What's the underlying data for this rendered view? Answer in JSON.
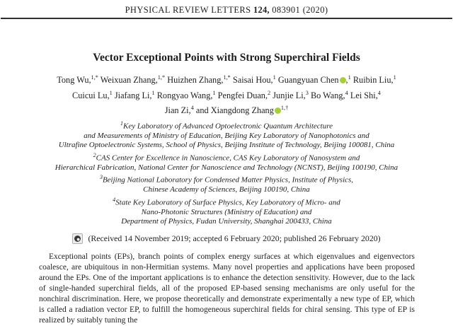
{
  "header": {
    "journal": "PHYSICAL REVIEW LETTERS",
    "volume_bold": "124,",
    "issue": "083901 (2020)"
  },
  "title": "Vector Exceptional Points with Strong Superchiral Fields",
  "authors": {
    "lines": [
      [
        {
          "name": "Tong Wu,",
          "sup": "1,*"
        },
        {
          "name": "Weixuan Zhang,",
          "sup": "1,*"
        },
        {
          "name": "Huizhen Zhang,",
          "sup": "1,*"
        },
        {
          "name": "Saisai Hou,",
          "sup": "1"
        },
        {
          "name": "Guangyuan Chen",
          "orcid": true,
          "post": ",",
          "sup": "1"
        },
        {
          "name": "Ruibin Liu,",
          "sup": "1"
        }
      ],
      [
        {
          "name": "Cuicui Lu,",
          "sup": "1"
        },
        {
          "name": "Jiafang Li,",
          "sup": "1"
        },
        {
          "name": "Rongyao Wang,",
          "sup": "1"
        },
        {
          "name": "Pengfei Duan,",
          "sup": "2"
        },
        {
          "name": "Junjie Li,",
          "sup": "3"
        },
        {
          "name": "Bo Wang,",
          "sup": "4"
        },
        {
          "name": "Lei Shi,",
          "sup": "4"
        }
      ],
      [
        {
          "name": "Jian Zi,",
          "sup": "4"
        },
        {
          "name": "and Xiangdong Zhang",
          "orcid": true,
          "sup": "1,†"
        }
      ]
    ]
  },
  "affiliations": [
    {
      "sup": "1",
      "text": "Key Laboratory of Advanced Optoelectronic Quantum Architecture"
    },
    {
      "sup": "",
      "text": "and Measurements of Ministry of Education, Beijing Key Laboratory of Nanophotonics and"
    },
    {
      "sup": "",
      "text": "Ultrafine Optoelectronic Systems, School of Physics, Beijing Institute of Technology, Beijing 100081, China"
    },
    {
      "sup": "2",
      "text": "CAS Center for Excellence in Nanoscience, CAS Key Laboratory of Nanosystem and"
    },
    {
      "sup": "",
      "text": "Hierarchical Fabrication, National Center for Nanoscience and Technology (NCNST), Beijing 100190, China"
    },
    {
      "sup": "3",
      "text": "Beijing National Laboratory for Condensed Matter Physics, Institute of Physics,"
    },
    {
      "sup": "",
      "text": "Chinese Academy of Sciences, Beijing 100190, China"
    },
    {
      "sup": "4",
      "text": "State Key Laboratory of Surface Physics, Key Laboratory of Micro- and"
    },
    {
      "sup": "",
      "text": "Nano-Photonic Structures (Ministry of Education) and"
    },
    {
      "sup": "",
      "text": "Department of Physics, Fudan University, Shanghai 200433, China"
    }
  ],
  "received": "(Received 14 November 2019; accepted 6 February 2020; published 26 February 2020)",
  "abstract": "Exceptional points (EPs), branch points of complex energy surfaces at which eigenvalues and eigenvectors coalesce, are ubiquitous in non-Hermitian systems. Many novel properties and applications have been proposed around the EPs. One of the important applications is to enhance the detection sensitivity. However, due to the lack of single-handed superchiral fields, all of the proposed EP-based sensing mechanisms are only useful for the nonchiral discrimination. Here, we propose theoretically and demonstrate experimentally a new type of EP, which is called a radiation vector EP, to fulfill the homogeneous superchiral fields for chiral sensing. This type of EP is realized by suitably tuning the",
  "icons": {
    "orcid": "orcid-icon",
    "crossmark": "crossmark-icon"
  },
  "colors": {
    "orcid_green": "#A6CE39",
    "rule": "#2e2e2e",
    "text": "#1e1e1e"
  }
}
